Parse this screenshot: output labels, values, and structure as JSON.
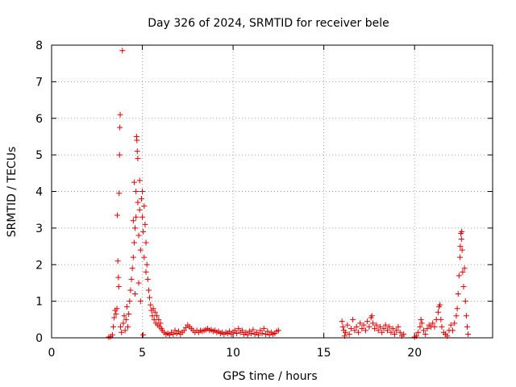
{
  "chart_data": {
    "type": "scatter",
    "title": "Day 326 of 2024, SRMTID for receiver bele",
    "xlabel": "GPS time / hours",
    "ylabel": "SRMTID / TECUs",
    "xlim": [
      0,
      24.3
    ],
    "ylim": [
      0,
      8
    ],
    "xticks": [
      0,
      5,
      10,
      15,
      20
    ],
    "xtick_labels": [
      "0",
      "5",
      "10",
      "15",
      "20"
    ],
    "yticks": [
      0,
      1,
      2,
      3,
      4,
      5,
      6,
      7,
      8
    ],
    "ytick_labels": [
      "0",
      "1",
      "2",
      "3",
      "4",
      "5",
      "6",
      "7",
      "8"
    ],
    "grid": true,
    "marker": "+",
    "color": "#e00000",
    "series": [
      {
        "name": "SRMTID",
        "points": [
          [
            3.15,
            0.02
          ],
          [
            3.25,
            0.03
          ],
          [
            3.35,
            0.08
          ],
          [
            3.4,
            0.3
          ],
          [
            3.45,
            0.55
          ],
          [
            3.5,
            0.75
          ],
          [
            3.55,
            0.65
          ],
          [
            3.6,
            0.8
          ],
          [
            3.62,
            3.35
          ],
          [
            3.65,
            2.1
          ],
          [
            3.68,
            1.65
          ],
          [
            3.7,
            1.4
          ],
          [
            3.72,
            3.95
          ],
          [
            3.74,
            5.0
          ],
          [
            3.76,
            5.75
          ],
          [
            3.78,
            6.1
          ],
          [
            3.8,
            0.3
          ],
          [
            3.85,
            0.15
          ],
          [
            3.9,
            7.85
          ],
          [
            3.95,
            0.4
          ],
          [
            4.0,
            0.6
          ],
          [
            4.05,
            0.2
          ],
          [
            4.1,
            0.5
          ],
          [
            4.15,
            0.85
          ],
          [
            4.2,
            0.3
          ],
          [
            4.25,
            0.65
          ],
          [
            4.3,
            1.0
          ],
          [
            4.35,
            1.3
          ],
          [
            4.4,
            1.6
          ],
          [
            4.45,
            1.9
          ],
          [
            4.5,
            2.2
          ],
          [
            4.5,
            3.2
          ],
          [
            4.55,
            2.6
          ],
          [
            4.55,
            4.25
          ],
          [
            4.6,
            3.0
          ],
          [
            4.6,
            1.2
          ],
          [
            4.65,
            3.3
          ],
          [
            4.65,
            4.0
          ],
          [
            4.68,
            5.5
          ],
          [
            4.7,
            5.4
          ],
          [
            4.72,
            5.1
          ],
          [
            4.75,
            4.9
          ],
          [
            4.75,
            3.7
          ],
          [
            4.8,
            2.8
          ],
          [
            4.8,
            1.5
          ],
          [
            4.85,
            3.5
          ],
          [
            4.85,
            4.3
          ],
          [
            4.9,
            1.0
          ],
          [
            4.9,
            2.4
          ],
          [
            4.95,
            3.8
          ],
          [
            5.0,
            4.0
          ],
          [
            5.0,
            3.3
          ],
          [
            5.05,
            2.9
          ],
          [
            5.05,
            0.08
          ],
          [
            5.1,
            3.6
          ],
          [
            5.1,
            2.2
          ],
          [
            5.15,
            3.1
          ],
          [
            5.2,
            2.6
          ],
          [
            5.2,
            1.8
          ],
          [
            5.25,
            2.0
          ],
          [
            5.3,
            1.6
          ],
          [
            5.35,
            1.3
          ],
          [
            5.4,
            1.1
          ],
          [
            5.45,
            0.9
          ],
          [
            5.5,
            0.75
          ],
          [
            5.55,
            0.6
          ],
          [
            5.6,
            0.8
          ],
          [
            5.65,
            0.5
          ],
          [
            5.7,
            0.7
          ],
          [
            5.75,
            0.4
          ],
          [
            5.8,
            0.6
          ],
          [
            5.85,
            0.35
          ],
          [
            5.9,
            0.5
          ],
          [
            5.95,
            0.3
          ],
          [
            6.0,
            0.4
          ],
          [
            6.05,
            0.25
          ],
          [
            6.1,
            0.2
          ],
          [
            6.2,
            0.15
          ],
          [
            6.3,
            0.1
          ],
          [
            6.4,
            0.12
          ],
          [
            6.5,
            0.08
          ],
          [
            6.6,
            0.15
          ],
          [
            6.7,
            0.1
          ],
          [
            6.8,
            0.2
          ],
          [
            6.9,
            0.12
          ],
          [
            7.0,
            0.18
          ],
          [
            7.1,
            0.1
          ],
          [
            7.2,
            0.15
          ],
          [
            7.3,
            0.2
          ],
          [
            7.4,
            0.28
          ],
          [
            7.5,
            0.35
          ],
          [
            7.6,
            0.3
          ],
          [
            7.7,
            0.25
          ],
          [
            7.8,
            0.2
          ],
          [
            7.9,
            0.15
          ],
          [
            8.0,
            0.2
          ],
          [
            8.1,
            0.15
          ],
          [
            8.2,
            0.2
          ],
          [
            8.3,
            0.18
          ],
          [
            8.4,
            0.2
          ],
          [
            8.5,
            0.22
          ],
          [
            8.6,
            0.25
          ],
          [
            8.7,
            0.2
          ],
          [
            8.8,
            0.22
          ],
          [
            8.9,
            0.18
          ],
          [
            9.0,
            0.2
          ],
          [
            9.1,
            0.15
          ],
          [
            9.2,
            0.18
          ],
          [
            9.3,
            0.12
          ],
          [
            9.4,
            0.15
          ],
          [
            9.5,
            0.1
          ],
          [
            9.6,
            0.15
          ],
          [
            9.7,
            0.12
          ],
          [
            9.8,
            0.18
          ],
          [
            9.9,
            0.1
          ],
          [
            10.0,
            0.15
          ],
          [
            10.1,
            0.2
          ],
          [
            10.2,
            0.12
          ],
          [
            10.3,
            0.25
          ],
          [
            10.4,
            0.15
          ],
          [
            10.5,
            0.2
          ],
          [
            10.6,
            0.1
          ],
          [
            10.7,
            0.15
          ],
          [
            10.8,
            0.08
          ],
          [
            10.9,
            0.18
          ],
          [
            11.0,
            0.12
          ],
          [
            11.1,
            0.22
          ],
          [
            11.2,
            0.1
          ],
          [
            11.3,
            0.15
          ],
          [
            11.4,
            0.08
          ],
          [
            11.5,
            0.2
          ],
          [
            11.6,
            0.12
          ],
          [
            11.7,
            0.25
          ],
          [
            11.8,
            0.1
          ],
          [
            11.9,
            0.18
          ],
          [
            12.0,
            0.08
          ],
          [
            12.1,
            0.15
          ],
          [
            12.2,
            0.1
          ],
          [
            12.3,
            0.12
          ],
          [
            12.4,
            0.18
          ],
          [
            12.5,
            0.2
          ],
          [
            16.0,
            0.45
          ],
          [
            16.05,
            0.3
          ],
          [
            16.1,
            0.2
          ],
          [
            16.15,
            0.05
          ],
          [
            16.2,
            0.15
          ],
          [
            16.3,
            0.35
          ],
          [
            16.4,
            0.1
          ],
          [
            16.5,
            0.25
          ],
          [
            16.6,
            0.5
          ],
          [
            16.7,
            0.2
          ],
          [
            16.8,
            0.3
          ],
          [
            16.9,
            0.15
          ],
          [
            17.0,
            0.4
          ],
          [
            17.1,
            0.25
          ],
          [
            17.2,
            0.35
          ],
          [
            17.3,
            0.2
          ],
          [
            17.4,
            0.45
          ],
          [
            17.5,
            0.3
          ],
          [
            17.6,
            0.55
          ],
          [
            17.65,
            0.6
          ],
          [
            17.7,
            0.4
          ],
          [
            17.8,
            0.25
          ],
          [
            17.9,
            0.35
          ],
          [
            18.0,
            0.2
          ],
          [
            18.1,
            0.3
          ],
          [
            18.2,
            0.15
          ],
          [
            18.3,
            0.25
          ],
          [
            18.4,
            0.35
          ],
          [
            18.5,
            0.2
          ],
          [
            18.6,
            0.3
          ],
          [
            18.7,
            0.15
          ],
          [
            18.8,
            0.25
          ],
          [
            18.9,
            0.1
          ],
          [
            19.0,
            0.2
          ],
          [
            19.1,
            0.3
          ],
          [
            19.2,
            0.15
          ],
          [
            19.3,
            0.05
          ],
          [
            19.4,
            0.1
          ],
          [
            20.0,
            0.02
          ],
          [
            20.1,
            0.05
          ],
          [
            20.2,
            0.15
          ],
          [
            20.3,
            0.3
          ],
          [
            20.35,
            0.5
          ],
          [
            20.4,
            0.4
          ],
          [
            20.5,
            0.2
          ],
          [
            20.6,
            0.1
          ],
          [
            20.7,
            0.25
          ],
          [
            20.8,
            0.35
          ],
          [
            20.9,
            0.3
          ],
          [
            21.0,
            0.4
          ],
          [
            21.1,
            0.3
          ],
          [
            21.2,
            0.5
          ],
          [
            21.3,
            0.7
          ],
          [
            21.35,
            0.85
          ],
          [
            21.4,
            0.9
          ],
          [
            21.45,
            0.5
          ],
          [
            21.5,
            0.3
          ],
          [
            21.6,
            0.15
          ],
          [
            21.7,
            0.1
          ],
          [
            21.8,
            0.05
          ],
          [
            21.9,
            0.2
          ],
          [
            22.0,
            0.35
          ],
          [
            22.1,
            0.2
          ],
          [
            22.2,
            0.4
          ],
          [
            22.3,
            0.6
          ],
          [
            22.35,
            0.8
          ],
          [
            22.4,
            1.2
          ],
          [
            22.45,
            1.7
          ],
          [
            22.5,
            2.2
          ],
          [
            22.52,
            2.5
          ],
          [
            22.55,
            2.85
          ],
          [
            22.58,
            2.7
          ],
          [
            22.6,
            2.9
          ],
          [
            22.62,
            2.4
          ],
          [
            22.65,
            1.8
          ],
          [
            22.7,
            1.4
          ],
          [
            22.75,
            1.9
          ],
          [
            22.8,
            1.0
          ],
          [
            22.85,
            0.6
          ],
          [
            22.9,
            0.3
          ],
          [
            22.95,
            0.1
          ]
        ]
      }
    ]
  }
}
